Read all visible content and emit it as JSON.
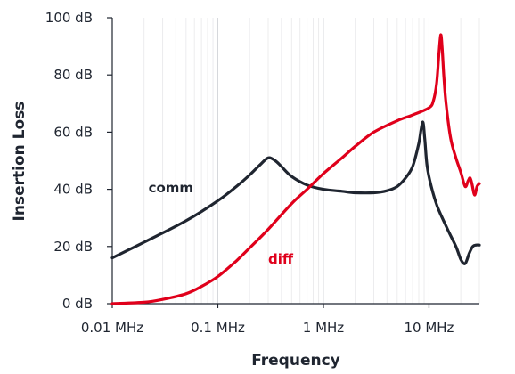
{
  "chart_data": {
    "type": "line",
    "title": "",
    "xlabel": "Frequency",
    "ylabel": "Insertion Loss",
    "x_scale": "log",
    "xlim_mhz": [
      0.01,
      30
    ],
    "ylim_db": [
      0,
      100
    ],
    "x_ticks": [
      {
        "value": 0.01,
        "label": "0.01 MHz"
      },
      {
        "value": 0.1,
        "label": "0.1 MHz"
      },
      {
        "value": 1,
        "label": "1 MHz"
      },
      {
        "value": 10,
        "label": "10 MHz"
      }
    ],
    "y_ticks": [
      {
        "value": 0,
        "label": "0 dB"
      },
      {
        "value": 20,
        "label": "20 dB"
      },
      {
        "value": 40,
        "label": "40 dB"
      },
      {
        "value": 60,
        "label": "60 dB"
      },
      {
        "value": 80,
        "label": "80 dB"
      },
      {
        "value": 100,
        "label": "100 dB"
      }
    ],
    "grid": true,
    "series": [
      {
        "name": "comm",
        "color": "#1f2530",
        "x": [
          0.01,
          0.02,
          0.05,
          0.1,
          0.15,
          0.2,
          0.25,
          0.3,
          0.35,
          0.4,
          0.5,
          0.7,
          1,
          1.5,
          2,
          3,
          4,
          5,
          6,
          7,
          8,
          8.7,
          9.1,
          9.6,
          10.5,
          12,
          15,
          18,
          20,
          22,
          24,
          26,
          28,
          30
        ],
        "y": [
          16,
          21.5,
          29,
          36,
          41,
          45,
          48.5,
          51,
          50,
          48,
          44.5,
          41.5,
          40,
          39.3,
          38.8,
          38.8,
          39.5,
          41,
          44,
          48,
          56,
          63.5,
          58,
          48,
          41,
          34,
          26,
          20,
          15.5,
          14,
          17.5,
          20,
          20.5,
          20.5
        ]
      },
      {
        "name": "diff",
        "color": "#e0001b",
        "x": [
          0.01,
          0.02,
          0.03,
          0.05,
          0.07,
          0.1,
          0.15,
          0.2,
          0.3,
          0.5,
          0.7,
          1,
          1.5,
          2,
          3,
          5,
          7,
          10,
          11,
          11.8,
          12.4,
          12.9,
          13.3,
          13.8,
          14.5,
          16,
          18,
          20,
          22,
          23.5,
          24.5,
          25.5,
          27,
          28.5,
          30
        ],
        "y": [
          0,
          0.5,
          1.5,
          3.5,
          6,
          9.5,
          15,
          19.5,
          26,
          35,
          40,
          45.5,
          51,
          55,
          60,
          64,
          66,
          68.5,
          71,
          77,
          87,
          94,
          90,
          80,
          70,
          58,
          51,
          46,
          41,
          43,
          44,
          42,
          38,
          41,
          42
        ]
      }
    ],
    "annotations": [
      {
        "text": "comm",
        "series": "comm",
        "x": 0.022,
        "y": 39
      },
      {
        "text": "diff",
        "series": "diff",
        "x": 0.3,
        "y": 14
      }
    ]
  }
}
